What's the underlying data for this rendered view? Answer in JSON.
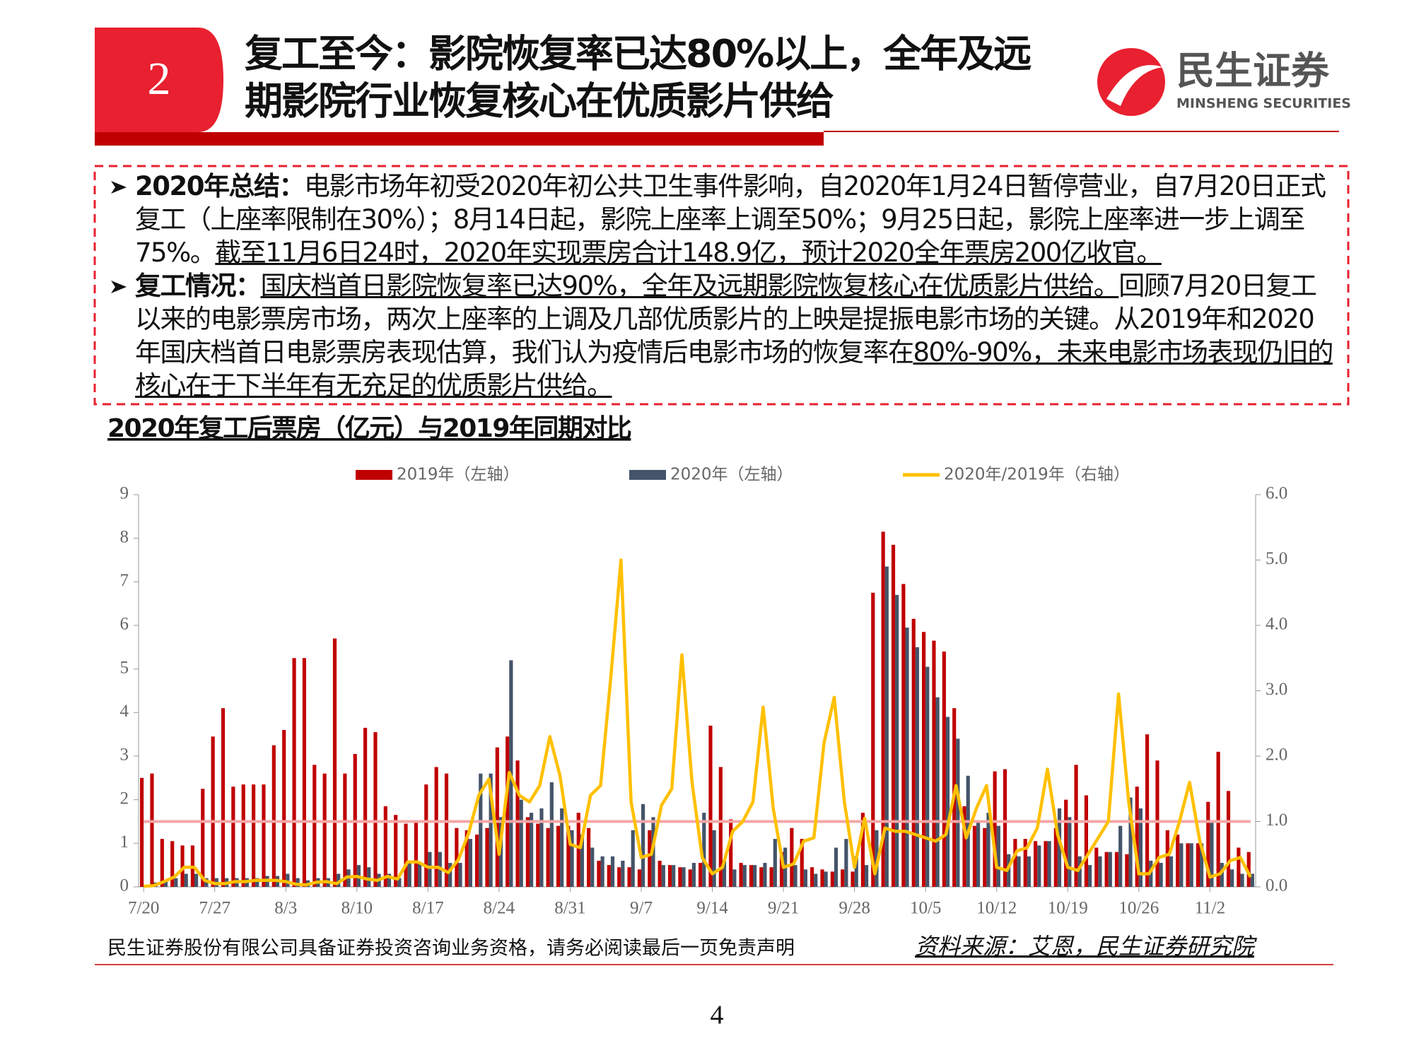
{
  "header": {
    "number": "2",
    "title_lines": [
      "复工至今：影院恢复率已达80%以上，全年及远",
      "期影院行业恢复核心在优质影片供给"
    ]
  },
  "logo": {
    "name": "民生证券",
    "name_en": "MINSHENG SECURITIES"
  },
  "bullets": [
    {
      "label": "2020年总结：",
      "segments": [
        {
          "text": "电影市场年初受2020年初公共卫生事件影响，自2020年1月24日暂停营业，自7月20日正式复工（上座率限制在30%）；8月14日起，影院上座率上调至50%；9月25日起，影院上座率进一步上调至75%。",
          "underline": false
        },
        {
          "text": "截至11月6日24时，2020年实现票房合计148.9亿，预计2020全年票房200亿收官。",
          "underline": true
        }
      ]
    },
    {
      "label": "复工情况：",
      "segments": [
        {
          "text": "国庆档首日影院恢复率已达90%，全年及远期影院恢复核心在优质影片供给。",
          "underline": true
        },
        {
          "text": "回顾7月20日复工以来的电影票房市场，两次上座率的上调及几部优质影片的上映是提振电影市场的关键。从2019年和2020年国庆档首日电影票房表现估算，我们认为疫情后电影市场的恢复率在",
          "underline": false
        },
        {
          "text": "80%-90%，未来电影市场表现仍旧的核心在于下半年有无充足的优质影片供给。",
          "underline": true
        }
      ]
    }
  ],
  "chart_data": {
    "type": "bar_line",
    "title": "2020年复工后票房（亿元）与2019年同期对比",
    "categories": [
      "7/20",
      null,
      null,
      null,
      null,
      null,
      null,
      "7/27",
      null,
      null,
      null,
      null,
      null,
      null,
      "8/3",
      null,
      null,
      null,
      null,
      null,
      null,
      "8/10",
      null,
      null,
      null,
      null,
      null,
      null,
      "8/17",
      null,
      null,
      null,
      null,
      null,
      null,
      "8/24",
      null,
      null,
      null,
      null,
      null,
      null,
      "8/31",
      null,
      null,
      null,
      null,
      null,
      null,
      "9/7",
      null,
      null,
      null,
      null,
      null,
      null,
      "9/14",
      null,
      null,
      null,
      null,
      null,
      null,
      "9/21",
      null,
      null,
      null,
      null,
      null,
      null,
      "9/28",
      null,
      null,
      null,
      null,
      null,
      null,
      "10/5",
      null,
      null,
      null,
      null,
      null,
      null,
      "10/12",
      null,
      null,
      null,
      null,
      null,
      null,
      "10/19",
      null,
      null,
      null,
      null,
      null,
      null,
      "10/26",
      null,
      null,
      null,
      null,
      null,
      null,
      "11/2",
      null,
      null,
      null,
      null
    ],
    "series": [
      {
        "name": "2019年（左轴）",
        "type": "bar",
        "color": "#c00000",
        "values": [
          2.5,
          2.6,
          1.1,
          1.05,
          0.95,
          0.95,
          2.25,
          3.45,
          4.1,
          2.3,
          2.35,
          2.35,
          2.35,
          3.25,
          3.6,
          5.25,
          5.25,
          2.8,
          2.6,
          5.7,
          2.6,
          3.05,
          3.65,
          3.55,
          1.85,
          1.65,
          1.45,
          1.5,
          2.35,
          2.75,
          2.6,
          1.35,
          1.3,
          1.2,
          1.35,
          3.2,
          3.45,
          2.9,
          1.6,
          1.45,
          1.35,
          1.4,
          1.4,
          1.7,
          1.35,
          0.6,
          0.5,
          0.45,
          0.45,
          0.4,
          1.3,
          0.6,
          0.5,
          0.45,
          0.4,
          0.55,
          3.7,
          2.75,
          1.55,
          0.55,
          0.5,
          0.45,
          0.45,
          0.8,
          1.35,
          1.1,
          0.45,
          0.4,
          0.35,
          0.4,
          0.35,
          1.7,
          6.75,
          8.15,
          7.85,
          6.95,
          6.15,
          5.85,
          5.65,
          5.4,
          4.1,
          1.85,
          1.4,
          1.35,
          2.65,
          2.7,
          1.1,
          1.1,
          1.05,
          1.05,
          1.35,
          2.0,
          2.8,
          2.1,
          0.9,
          0.8,
          0.8,
          0.75,
          2.3,
          3.5,
          2.9,
          1.3,
          1.2,
          1.0,
          1.0,
          1.95,
          3.1,
          2.2,
          0.9,
          0.8
        ]
      },
      {
        "name": "2020年（左轴）",
        "type": "bar",
        "color": "#44546a",
        "values": [
          0.05,
          0.1,
          0.15,
          0.2,
          0.3,
          0.3,
          0.2,
          0.2,
          0.2,
          0.2,
          0.2,
          0.2,
          0.25,
          0.25,
          0.3,
          0.2,
          0.15,
          0.2,
          0.2,
          0.3,
          0.4,
          0.5,
          0.45,
          0.3,
          0.3,
          0.2,
          0.55,
          0.55,
          0.8,
          0.8,
          0.55,
          0.55,
          1.1,
          2.6,
          2.6,
          1.6,
          5.2,
          2.0,
          1.7,
          1.8,
          2.4,
          1.8,
          1.3,
          1.2,
          0.9,
          0.7,
          0.7,
          0.6,
          1.3,
          1.9,
          1.6,
          0.5,
          0.5,
          0.45,
          0.55,
          1.7,
          1.3,
          0.6,
          0.4,
          0.5,
          0.5,
          0.55,
          1.1,
          0.9,
          0.5,
          0.4,
          0.3,
          0.35,
          0.9,
          1.1,
          0.7,
          0.5,
          1.3,
          7.35,
          6.7,
          5.95,
          5.5,
          5.05,
          4.35,
          3.9,
          3.4,
          2.55,
          1.5,
          1.7,
          1.4,
          0.75,
          0.7,
          0.7,
          0.95,
          1.05,
          1.8,
          1.6,
          0.7,
          0.5,
          0.7,
          0.8,
          1.4,
          2.05,
          1.8,
          0.6,
          0.55,
          0.7,
          1.0,
          1.0,
          1.0,
          1.5,
          0.55,
          0.4,
          0.3,
          0.3
        ]
      },
      {
        "name": "2020年/2019年（右轴）",
        "type": "line",
        "axis": "y2",
        "color": "#ffc000",
        "values": [
          0.01,
          0.02,
          0.08,
          0.15,
          0.3,
          0.3,
          0.1,
          0.05,
          0.05,
          0.08,
          0.08,
          0.1,
          0.1,
          0.1,
          0.08,
          0.04,
          0.03,
          0.07,
          0.08,
          0.05,
          0.15,
          0.16,
          0.12,
          0.1,
          0.16,
          0.12,
          0.38,
          0.38,
          0.3,
          0.3,
          0.22,
          0.42,
          0.82,
          1.4,
          1.65,
          0.5,
          1.75,
          1.4,
          1.3,
          1.55,
          2.3,
          1.7,
          0.65,
          0.6,
          1.4,
          1.55,
          3.2,
          5.0,
          1.3,
          0.45,
          0.5,
          1.25,
          1.5,
          3.55,
          1.6,
          0.45,
          0.2,
          0.3,
          0.85,
          1.0,
          1.3,
          2.75,
          1.2,
          0.3,
          0.35,
          0.7,
          0.75,
          2.2,
          2.9,
          1.3,
          0.3,
          1.05,
          0.2,
          0.9,
          0.85,
          0.85,
          0.8,
          0.75,
          0.7,
          0.8,
          1.55,
          0.75,
          1.2,
          1.55,
          0.3,
          0.25,
          0.55,
          0.6,
          0.9,
          1.8,
          0.8,
          0.3,
          0.25,
          0.5,
          0.75,
          1.0,
          2.95,
          1.3,
          0.2,
          0.2,
          0.45,
          0.5,
          1.0,
          1.6,
          0.7,
          0.15,
          0.2,
          0.4,
          0.45,
          0.15
        ]
      }
    ],
    "reference_line": {
      "value": 1.0,
      "axis": "y2",
      "color": "#f4a6a6"
    },
    "ylim": [
      0,
      9
    ],
    "yticks": [
      0,
      1,
      2,
      3,
      4,
      5,
      6,
      7,
      8,
      9
    ],
    "y2lim": [
      0,
      6
    ],
    "y2ticks": [
      {
        "value": 0,
        "label": "0.0"
      },
      {
        "value": 1,
        "label": "1.0"
      },
      {
        "value": 2,
        "label": "2.0"
      },
      {
        "value": 3,
        "label": "3.0"
      },
      {
        "value": 4,
        "label": "4.0"
      },
      {
        "value": 5,
        "label": "5.0"
      },
      {
        "value": 6,
        "label": "6.0"
      }
    ],
    "legend": "top"
  },
  "footer": {
    "disclaimer": "民生证券股份有限公司具备证券投资咨询业务资格，请务必阅读最后一页免责声明",
    "source": "资料来源：艾恩，民生证券研究院",
    "page": "4"
  }
}
